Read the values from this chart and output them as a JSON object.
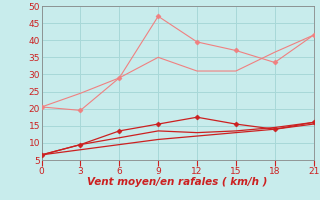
{
  "x": [
    0,
    3,
    6,
    9,
    12,
    15,
    18,
    21
  ],
  "lines": [
    {
      "y": [
        20.5,
        19.5,
        29,
        47,
        39.5,
        37,
        33.5,
        41.5
      ],
      "color": "#f08080",
      "linewidth": 0.8,
      "marker": "D",
      "markersize": 2.5,
      "zorder": 4
    },
    {
      "y": [
        20.5,
        24.5,
        29,
        35,
        31,
        31,
        36.5,
        41.5
      ],
      "color": "#f08080",
      "linewidth": 0.8,
      "marker": null,
      "markersize": 0,
      "zorder": 3
    },
    {
      "y": [
        6.5,
        9.5,
        13.5,
        15.5,
        17.5,
        15.5,
        14.0,
        16
      ],
      "color": "#cc2020",
      "linewidth": 0.9,
      "marker": "D",
      "markersize": 2.5,
      "zorder": 5
    },
    {
      "y": [
        6.5,
        9.5,
        11.5,
        13.5,
        13.0,
        13.5,
        14.5,
        16
      ],
      "color": "#cc2020",
      "linewidth": 0.9,
      "marker": null,
      "markersize": 0,
      "zorder": 4
    },
    {
      "y": [
        6.5,
        8.0,
        9.5,
        11.0,
        12.0,
        13.0,
        14.0,
        15.5
      ],
      "color": "#cc2020",
      "linewidth": 0.9,
      "marker": null,
      "markersize": 0,
      "zorder": 3
    }
  ],
  "xlabel": "Vent moyen/en rafales ( km/h )",
  "xlim": [
    0,
    21
  ],
  "ylim": [
    5,
    50
  ],
  "yticks": [
    5,
    10,
    15,
    20,
    25,
    30,
    35,
    40,
    45,
    50
  ],
  "xticks": [
    0,
    3,
    6,
    9,
    12,
    15,
    18,
    21
  ],
  "bg_color": "#c8ecec",
  "grid_color": "#a8d8d8",
  "xlabel_color": "#cc2020",
  "xlabel_fontsize": 7.5,
  "tick_fontsize": 6.5,
  "tick_color": "#cc2020",
  "axis_color": "#888888"
}
